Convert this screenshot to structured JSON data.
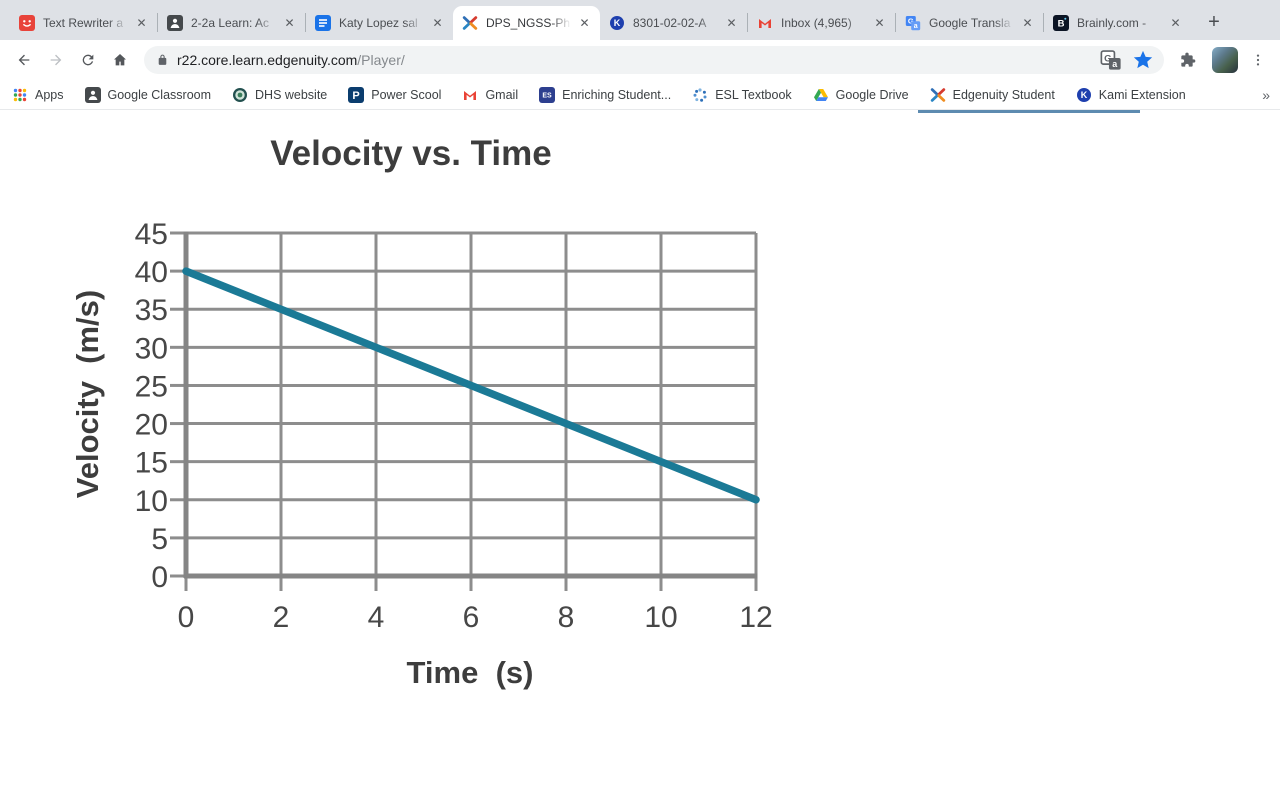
{
  "window": {
    "tabs": [
      {
        "label": "Text Rewriter a",
        "icon": "text-rewriter-icon",
        "active": false
      },
      {
        "label": "2-2a Learn: Ac",
        "icon": "classroom-icon",
        "active": false
      },
      {
        "label": "Katy Lopez sal",
        "icon": "docs-icon",
        "active": false
      },
      {
        "label": "DPS_NGSS-Ph",
        "icon": "edgenuity-icon",
        "active": true
      },
      {
        "label": "8301-02-02-A",
        "icon": "kami-icon",
        "active": false
      },
      {
        "label": "Inbox (4,965)",
        "icon": "gmail-icon",
        "active": false
      },
      {
        "label": "Google Transla",
        "icon": "translate-icon",
        "active": false
      },
      {
        "label": "Brainly.com - ",
        "icon": "brainly-icon",
        "active": false
      }
    ],
    "new_tab_button": "+"
  },
  "toolbar": {
    "url_domain": "r22.core.learn.edgenuity.com",
    "url_path": "/Player/",
    "icons": [
      "back-icon",
      "forward-icon",
      "reload-icon",
      "home-icon",
      "lock-icon",
      "translate-icon",
      "bookmark-star-icon",
      "extensions-icon",
      "profile-avatar",
      "menu-icon"
    ]
  },
  "bookmarks_bar": {
    "items": [
      {
        "label": "Apps",
        "icon": "apps-grid-icon"
      },
      {
        "label": "Google Classroom",
        "icon": "classroom-icon"
      },
      {
        "label": "DHS website",
        "icon": "dhs-seal-icon"
      },
      {
        "label": "Power Scool",
        "icon": "powerschool-icon"
      },
      {
        "label": "Gmail",
        "icon": "gmail-icon"
      },
      {
        "label": "Enriching Student...",
        "icon": "es-icon"
      },
      {
        "label": "ESL Textbook",
        "icon": "esl-icon"
      },
      {
        "label": "Google Drive",
        "icon": "drive-icon"
      },
      {
        "label": "Edgenuity Student",
        "icon": "edgenuity-icon"
      },
      {
        "label": "Kami Extension",
        "icon": "kami-icon"
      }
    ],
    "overflow_chevron": "»"
  },
  "chart_data": {
    "type": "line",
    "title": "Velocity vs. Time",
    "xlabel": "Time  (s)",
    "ylabel": "Velocity  (m/s)",
    "series": [
      {
        "name": "velocity",
        "x": [
          0,
          12
        ],
        "y": [
          40,
          10
        ]
      }
    ],
    "xlim": [
      0,
      12
    ],
    "ylim": [
      0,
      45
    ],
    "xticks": [
      0,
      2,
      4,
      6,
      8,
      10,
      12
    ],
    "yticks": [
      0,
      5,
      10,
      15,
      20,
      25,
      30,
      35,
      40,
      45
    ],
    "grid": true,
    "legend": false,
    "line_color": "#1b7a96",
    "grid_color": "#8d8d8d",
    "axis_color": "#858585",
    "text_color": "#3d3d3d"
  }
}
